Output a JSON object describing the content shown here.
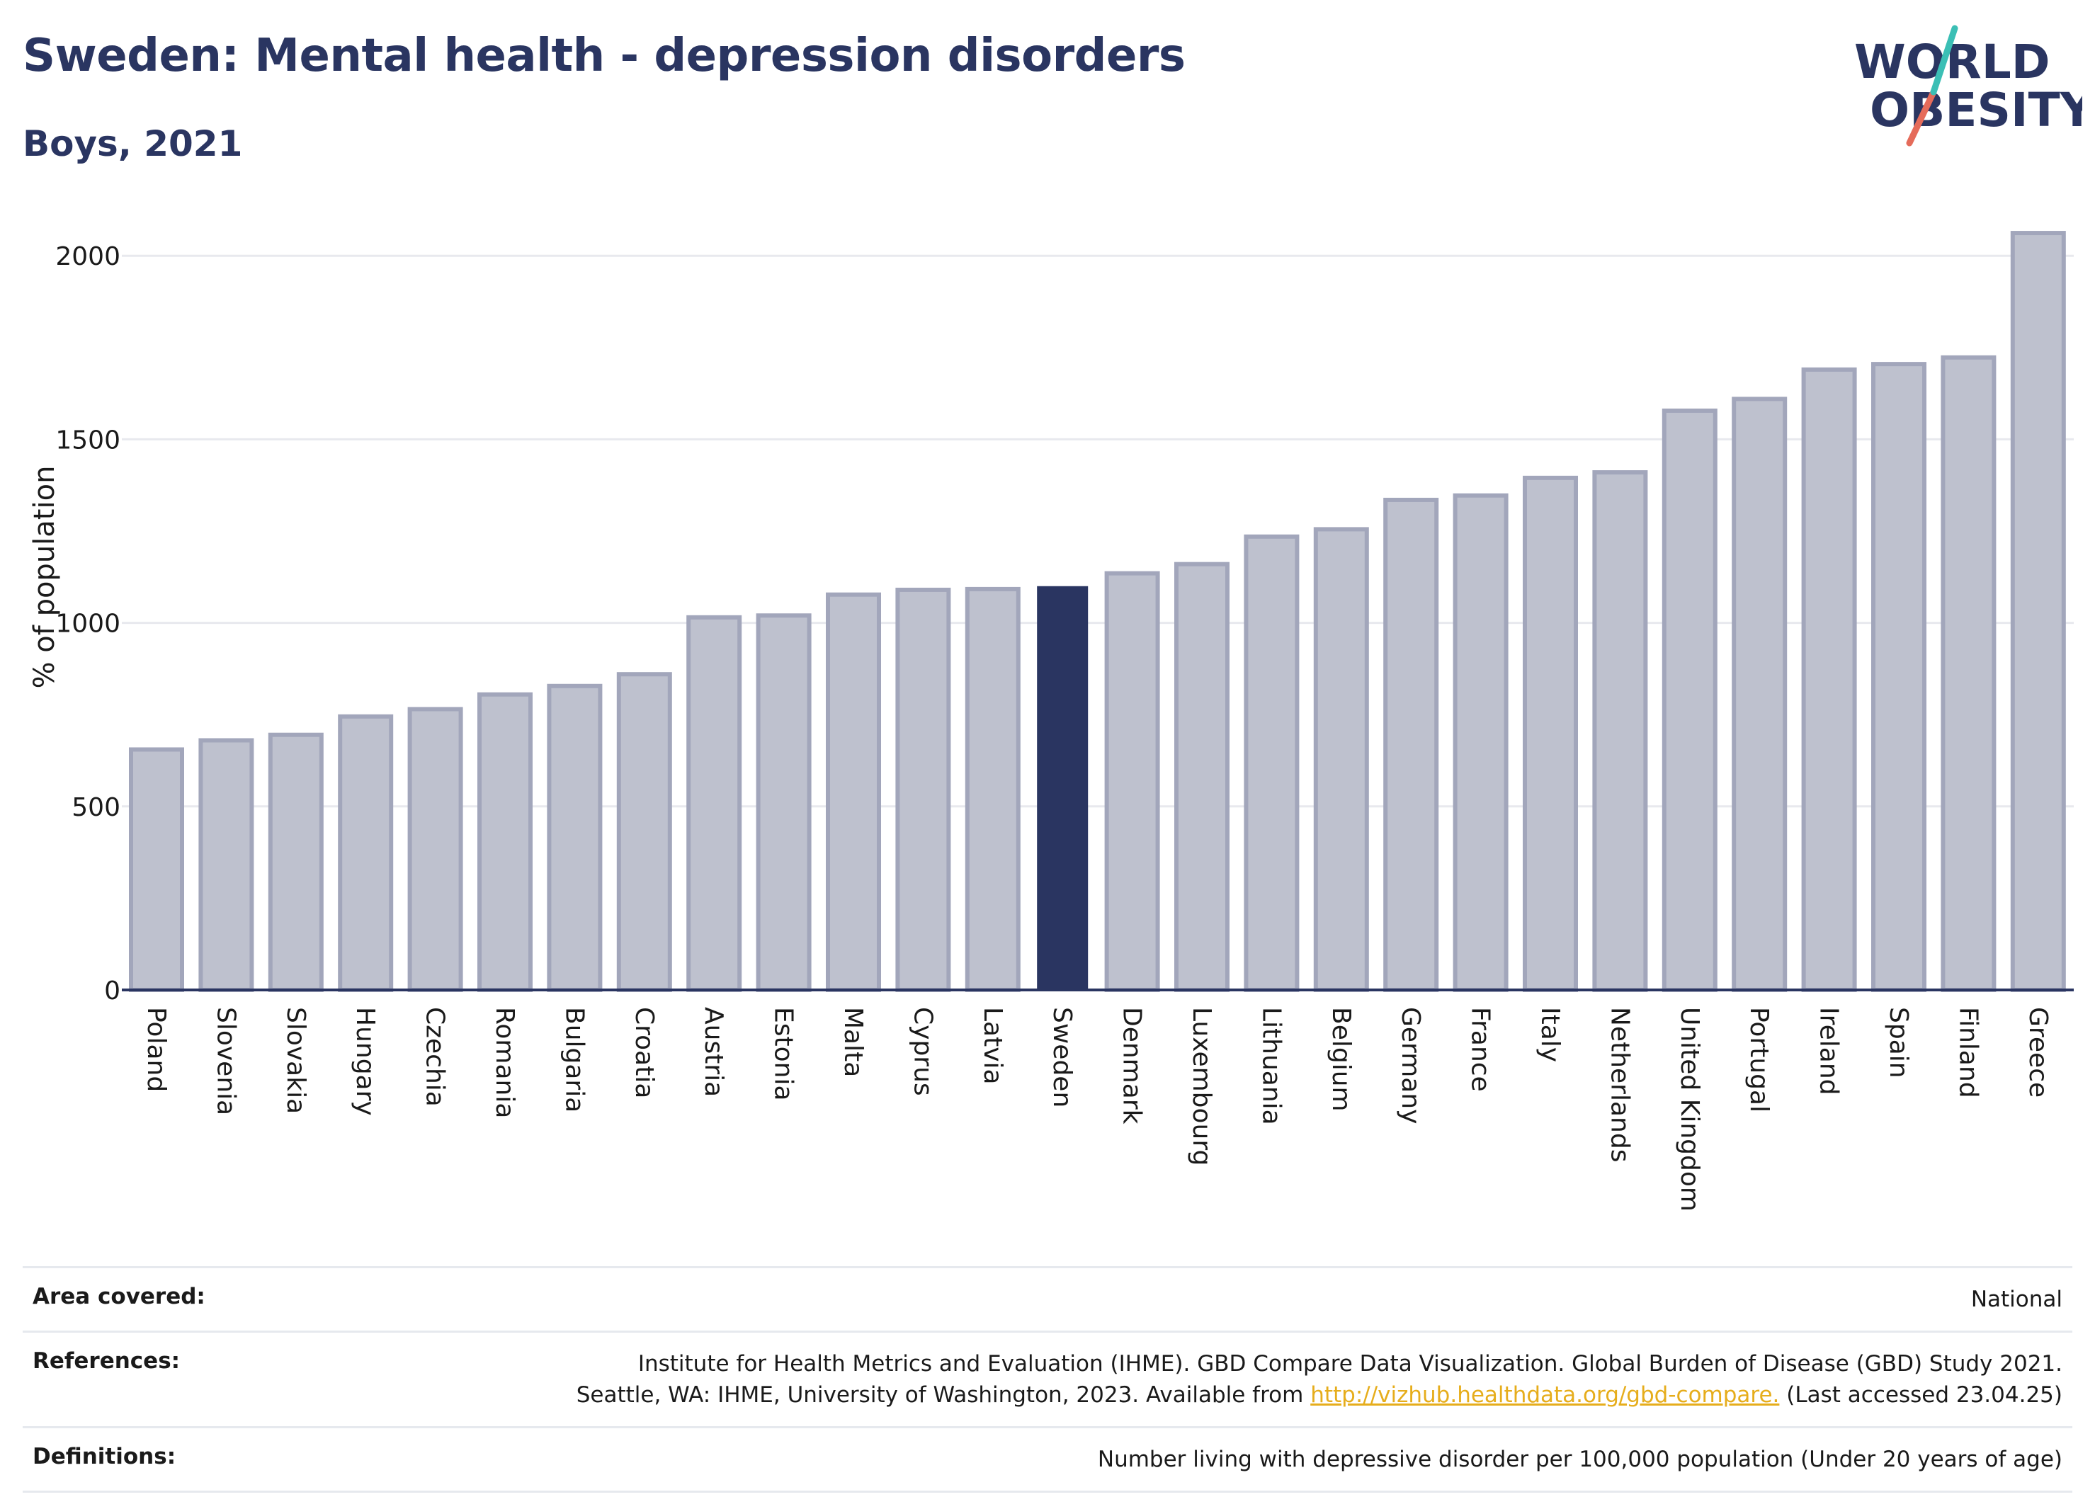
{
  "header": {
    "title": "Sweden: Mental health - depression disorders",
    "subtitle": "Boys, 2021"
  },
  "logo": {
    "line1": "WORLD",
    "line2": "OBESITY",
    "colors": {
      "text": "#2a3561",
      "slash_top": "#3bbfb5",
      "slash_bottom": "#e56b5a"
    }
  },
  "chart_data": {
    "type": "bar",
    "ylabel": "% of population",
    "xlabel": "",
    "ylim": [
      0,
      2100
    ],
    "yticks": [
      0,
      500,
      1000,
      1500,
      2000
    ],
    "grid": true,
    "highlight": "Sweden",
    "categories": [
      "Poland",
      "Slovenia",
      "Slovakia",
      "Hungary",
      "Czechia",
      "Romania",
      "Bulgaria",
      "Croatia",
      "Austria",
      "Estonia",
      "Malta",
      "Cyprus",
      "Latvia",
      "Sweden",
      "Denmark",
      "Luxembourg",
      "Lithuania",
      "Belgium",
      "Germany",
      "France",
      "Italy",
      "Netherlands",
      "United Kingdom",
      "Portugal",
      "Ireland",
      "Spain",
      "Finland",
      "Greece"
    ],
    "values": [
      655,
      680,
      695,
      745,
      765,
      805,
      828,
      860,
      1015,
      1020,
      1077,
      1090,
      1092,
      1100,
      1135,
      1160,
      1235,
      1255,
      1335,
      1347,
      1395,
      1410,
      1578,
      1610,
      1690,
      1705,
      1723,
      2062
    ],
    "colors": {
      "bar": "#bec1ce",
      "bar_edge": "#a2a6bb",
      "highlight": "#2a3561",
      "axis": "#2a3561",
      "grid": "#e8e9ee"
    }
  },
  "info": {
    "area_key": "Area covered:",
    "area_val": "National",
    "ref_key": "References:",
    "ref_line1": "Institute for Health Metrics and Evaluation (IHME). GBD Compare Data Visualization. Global Burden of Disease (GBD) Study 2021.",
    "ref_line2_pre": "Seattle, WA: IHME, University of Washington, 2023. Available from ",
    "ref_link": "http://vizhub.healthdata.org/gbd-compare.",
    "ref_line2_post": " (Last accessed 23.04.25)",
    "def_key": "Definitions:",
    "def_val": "Number living with depressive disorder per 100,000 population (Under 20 years of age)"
  }
}
